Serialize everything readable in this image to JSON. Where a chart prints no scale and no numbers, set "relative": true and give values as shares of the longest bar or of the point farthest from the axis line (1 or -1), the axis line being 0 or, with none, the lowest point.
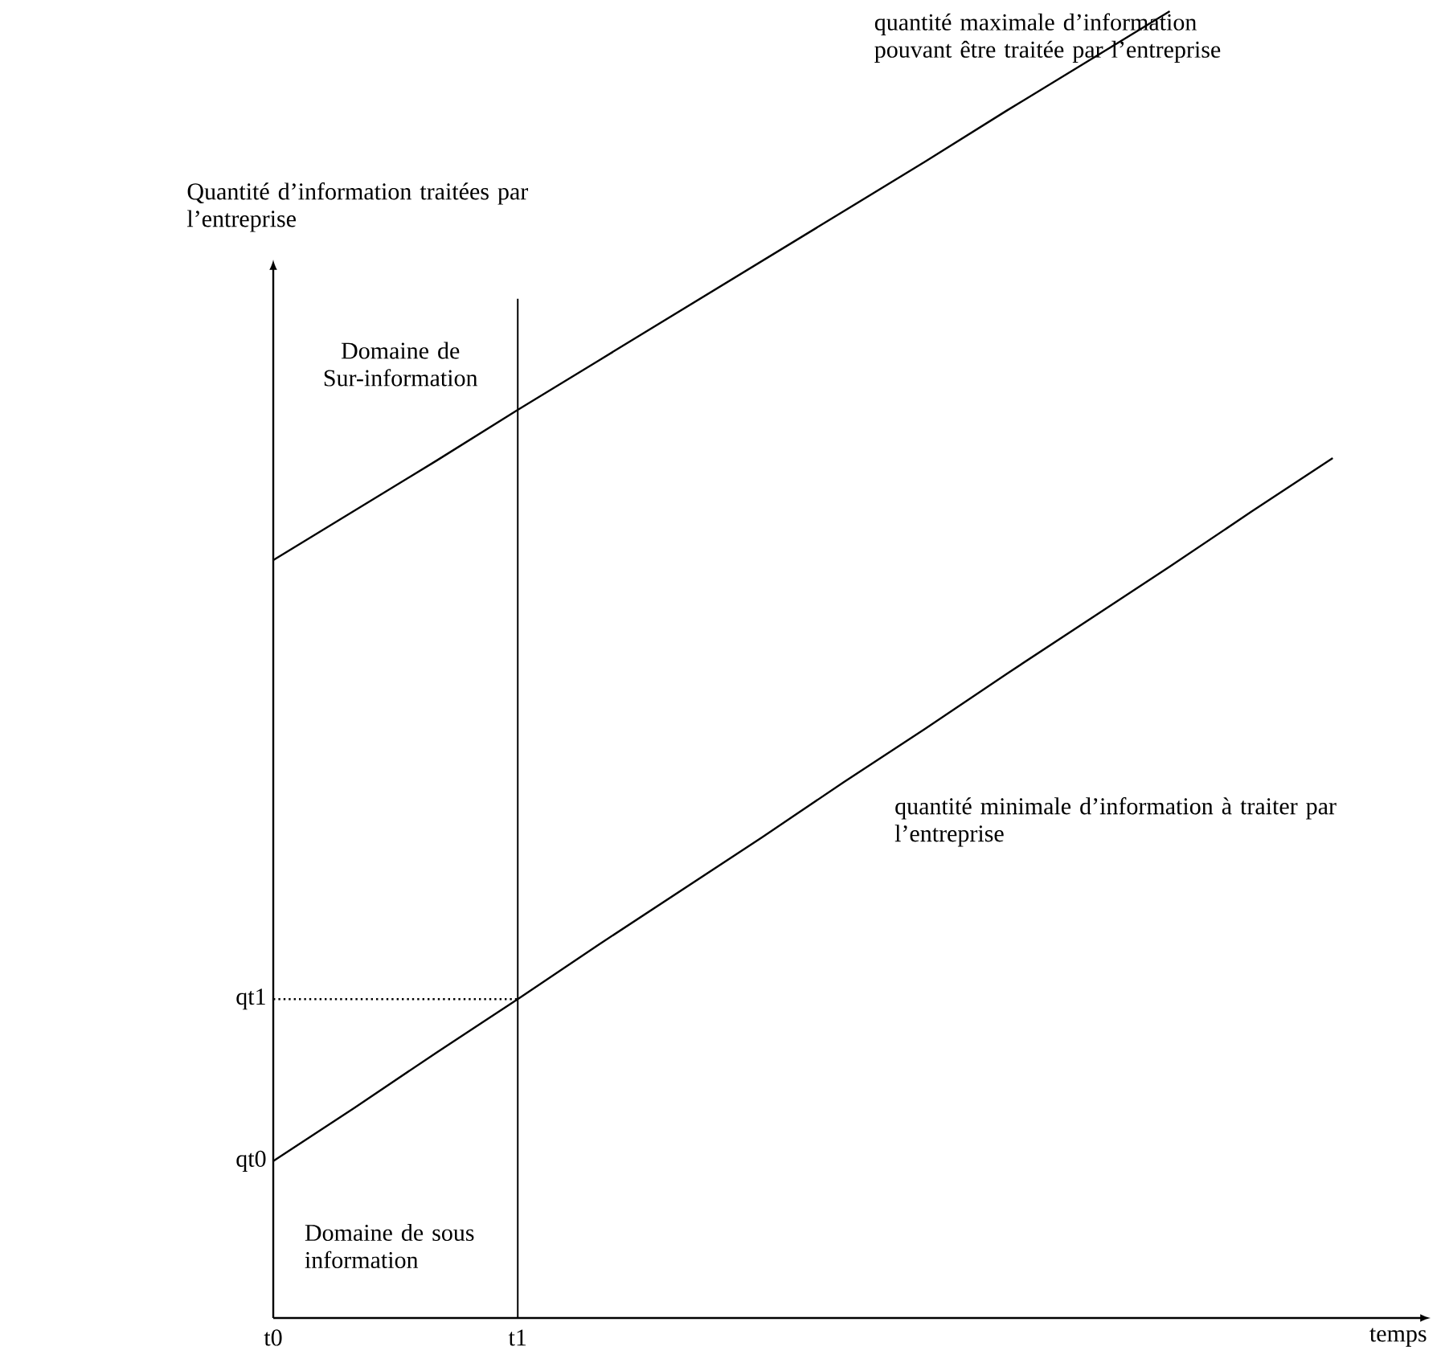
{
  "chart_data": {
    "type": "line",
    "relative": true,
    "xlabel": "temps",
    "ylabel": "Quantité d’information traitées par l’entreprise",
    "categories": [
      "t0",
      null,
      null,
      "t1",
      null,
      null,
      null,
      null,
      null,
      null,
      null,
      null,
      null,
      null,
      null
    ],
    "series": [
      {
        "name": "quantité maximale d’information pouvant être traitée par l’entreprise",
        "color": "#000000",
        "values": [
          0.58,
          0.618,
          0.656,
          0.695,
          0.733,
          0.771,
          0.809,
          0.847,
          0.885,
          0.924,
          0.962,
          1.0,
          null,
          null,
          null
        ]
      },
      {
        "name": "quantité minimale d’information à traiter par l’entreprise",
        "color": "#000000",
        "values": [
          0.12,
          0.161,
          0.203,
          0.244,
          0.286,
          0.327,
          0.368,
          0.41,
          0.451,
          0.493,
          0.534,
          0.575,
          0.617,
          0.658,
          null
        ]
      },
      {
        "color": "#000000",
        "values": [
          0.244,
          0.244,
          0.244,
          0.244,
          null,
          null,
          null,
          null,
          null,
          null,
          null,
          null,
          null,
          null,
          null
        ],
        "line_style": "dotted"
      }
    ],
    "ref_lines": [
      {
        "axis": "x",
        "value": "t1",
        "color": "#000000"
      }
    ],
    "annotations": [
      "Domaine de Sur-information",
      "Domaine de sous information",
      "qt0",
      "qt1"
    ],
    "marker": "none",
    "line_style": "solid"
  }
}
